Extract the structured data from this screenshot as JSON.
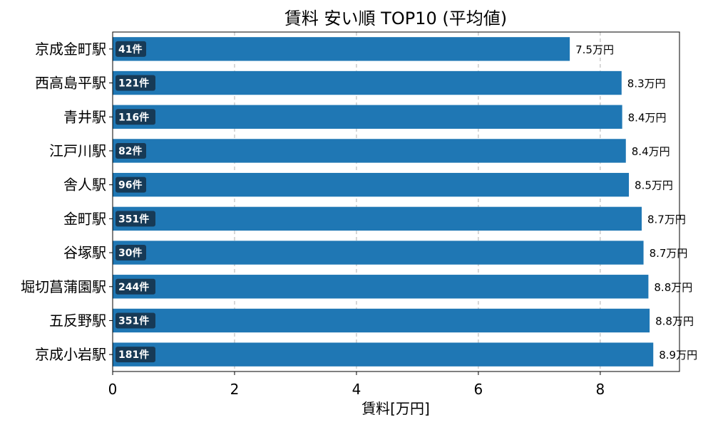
{
  "chart_data": {
    "type": "bar",
    "orientation": "horizontal",
    "title": "賃料 安い順 TOP10 (平均値)",
    "xlabel": "賃料[万円]",
    "ylabel": "",
    "xlim": [
      0,
      9.3
    ],
    "xticks": [
      0,
      2,
      4,
      6,
      8
    ],
    "grid": true,
    "bar_color": "#1f77b4",
    "badge_color": "#173a56",
    "categories": [
      "京成金町駅",
      "西高島平駅",
      "青井駅",
      "江戸川駅",
      "舎人駅",
      "金町駅",
      "谷塚駅",
      "堀切菖蒲園駅",
      "五反野駅",
      "京成小岩駅"
    ],
    "values": [
      7.5,
      8.35,
      8.36,
      8.42,
      8.47,
      8.68,
      8.71,
      8.79,
      8.81,
      8.87
    ],
    "value_labels": [
      "7.5万円",
      "8.3万円",
      "8.4万円",
      "8.4万円",
      "8.5万円",
      "8.7万円",
      "8.7万円",
      "8.8万円",
      "8.8万円",
      "8.9万円"
    ],
    "counts": [
      "41件",
      "121件",
      "116件",
      "82件",
      "96件",
      "351件",
      "30件",
      "244件",
      "351件",
      "181件"
    ]
  }
}
